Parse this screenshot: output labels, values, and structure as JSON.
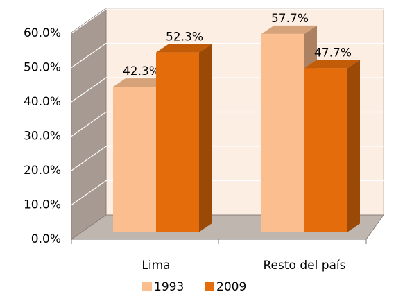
{
  "chart_data": {
    "type": "bar3d",
    "categories": [
      "Lima",
      "Resto del país"
    ],
    "series": [
      {
        "name": "1993",
        "color": "#FBBE8E",
        "values": [
          42.3,
          57.7
        ],
        "value_labels": [
          "42.3%",
          "57.7%"
        ]
      },
      {
        "name": "2009",
        "color": "#E46C0A",
        "values": [
          52.3,
          47.7
        ],
        "value_labels": [
          "52.3%",
          "47.7%"
        ]
      }
    ],
    "ylim": [
      0,
      60
    ],
    "yticks": [
      {
        "value": 0,
        "label": "0.0%"
      },
      {
        "value": 10,
        "label": "10.0%"
      },
      {
        "value": 20,
        "label": "20.0%"
      },
      {
        "value": 30,
        "label": "30.0%"
      },
      {
        "value": 40,
        "label": "40.0%"
      },
      {
        "value": 50,
        "label": "50.0%"
      },
      {
        "value": 60,
        "label": "60.0%"
      }
    ],
    "grid": true,
    "legend": "bottom"
  }
}
